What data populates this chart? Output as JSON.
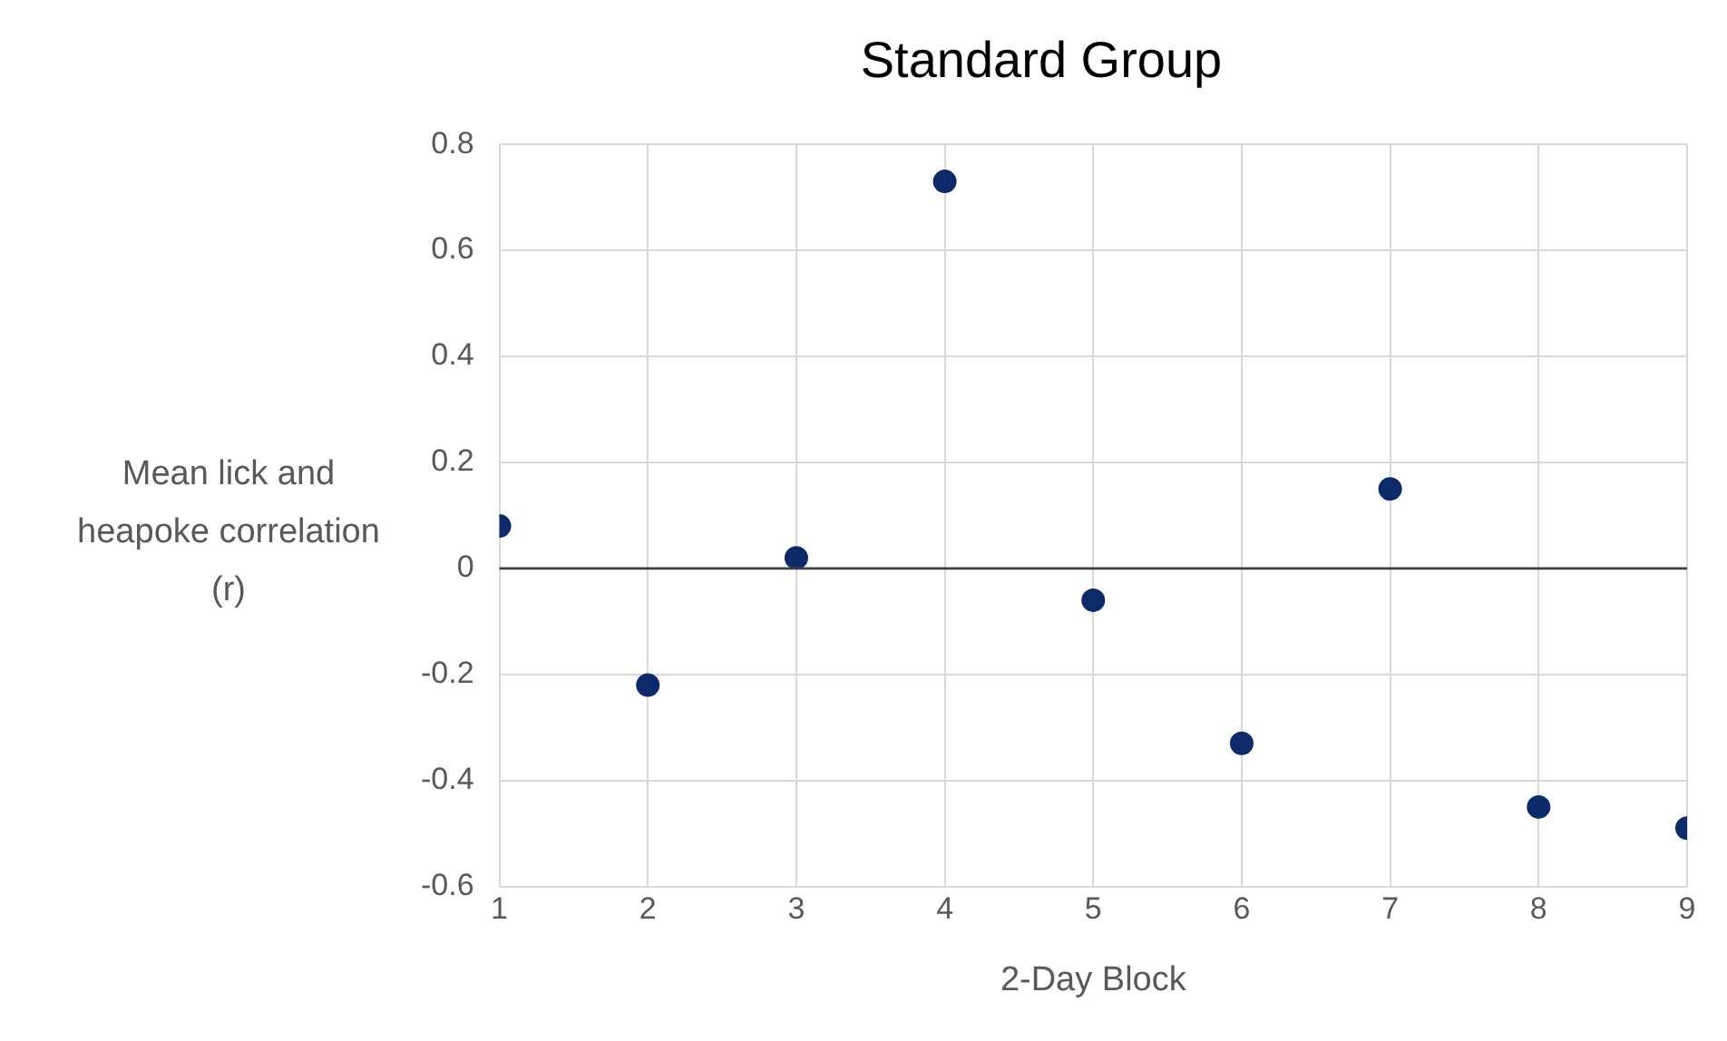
{
  "chart_data": {
    "type": "scatter",
    "title": "Standard Group",
    "xlabel": "2-Day Block",
    "ylabel": "Mean lick and heapoke correlation (r)",
    "x": [
      1,
      2,
      3,
      4,
      5,
      6,
      7,
      8,
      9
    ],
    "series": [
      {
        "color": "#0d2a6b",
        "values": [
          0.08,
          -0.22,
          0.02,
          0.73,
          -0.06,
          -0.33,
          0.15,
          -0.45,
          -0.49
        ]
      }
    ],
    "xlim": [
      1,
      9
    ],
    "xticks": [
      1,
      2,
      3,
      4,
      5,
      6,
      7,
      8,
      9
    ],
    "ylim": [
      -0.6,
      0.8
    ],
    "yticks": [
      -0.6,
      -0.4,
      -0.2,
      0,
      0.2,
      0.4,
      0.6,
      0.8
    ],
    "ref_lines": [
      {
        "axis": "y",
        "value": 0,
        "color": "#404040"
      }
    ],
    "grid": true,
    "legend": false,
    "marker": "circle"
  }
}
